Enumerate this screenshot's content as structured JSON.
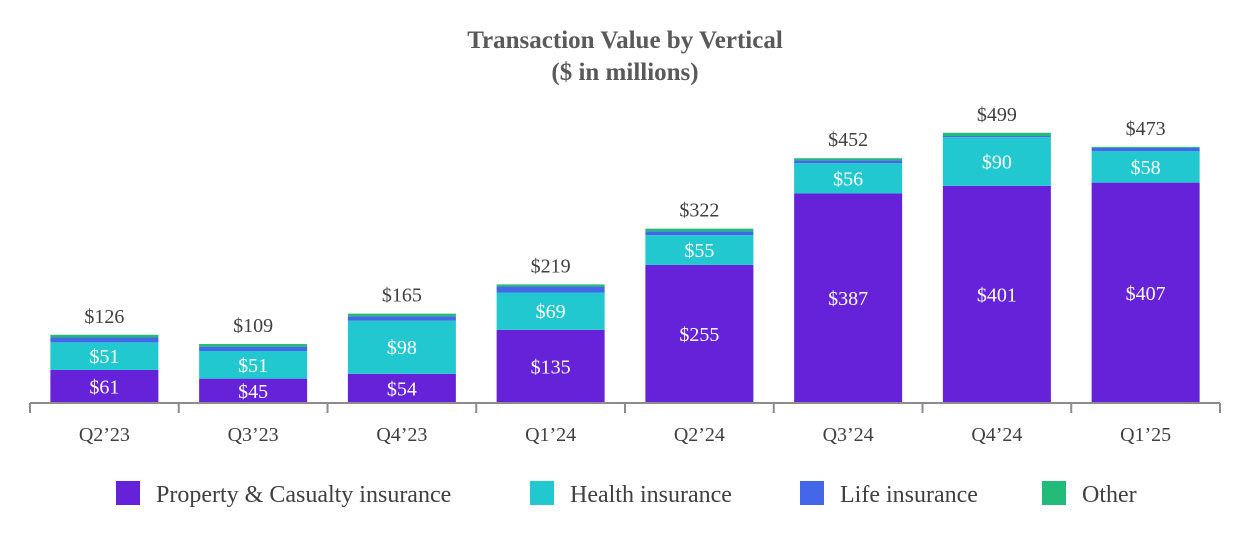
{
  "chart_data": {
    "type": "bar",
    "stacked": true,
    "title": "Transaction Value by Vertical",
    "subtitle": "($ in millions)",
    "categories": [
      "Q2’23",
      "Q3’23",
      "Q4’23",
      "Q1’24",
      "Q2’24",
      "Q3’24",
      "Q4’24",
      "Q1’25"
    ],
    "series": [
      {
        "name": "Property & Casualty insurance",
        "color": "#6622d8",
        "values": [
          61,
          45,
          54,
          135,
          255,
          387,
          401,
          407
        ],
        "value_labels": [
          "$61",
          "$45",
          "$54",
          "$135",
          "$255",
          "$387",
          "$401",
          "$407"
        ]
      },
      {
        "name": "Health insurance",
        "color": "#22c8d0",
        "values": [
          51,
          51,
          98,
          69,
          55,
          56,
          90,
          58
        ],
        "value_labels": [
          "$51",
          "$51",
          "$98",
          "$69",
          "$55",
          "$56",
          "$90",
          "$58"
        ]
      },
      {
        "name": "Life insurance",
        "color": "#4466e8",
        "values": [
          9,
          8,
          8,
          11,
          7,
          5,
          2,
          6
        ],
        "value_labels": []
      },
      {
        "name": "Other",
        "color": "#22bb77",
        "values": [
          5,
          5,
          5,
          4,
          5,
          4,
          6,
          2
        ],
        "value_labels": []
      }
    ],
    "totals": [
      126,
      109,
      165,
      219,
      322,
      452,
      499,
      473
    ],
    "total_labels": [
      "$126",
      "$109",
      "$165",
      "$219",
      "$322",
      "$452",
      "$499",
      "$473"
    ],
    "xlabel": "",
    "ylabel": "",
    "ylim": [
      0,
      520
    ],
    "grid": false,
    "legend": "bottom"
  }
}
